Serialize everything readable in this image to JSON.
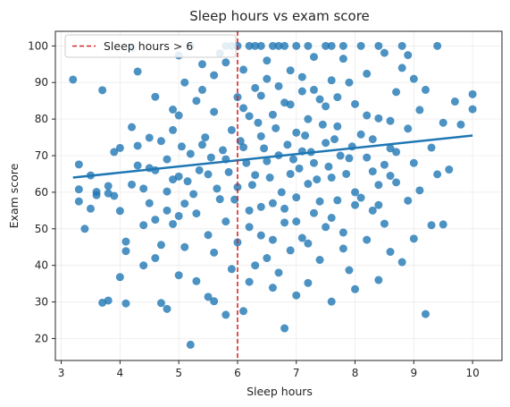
{
  "chart_data": {
    "type": "scatter",
    "title": "Sleep hours vs exam score",
    "xlabel": "Sleep hours",
    "ylabel": "Exam score",
    "xlim": [
      2.9,
      10.5
    ],
    "ylim": [
      14,
      104
    ],
    "xticks": [
      3,
      4,
      5,
      6,
      7,
      8,
      9,
      10
    ],
    "yticks": [
      20,
      30,
      40,
      50,
      60,
      70,
      80,
      90,
      100
    ],
    "grid": true,
    "legend": {
      "placement": "top-left",
      "entries": [
        "Sleep hours > 6"
      ]
    },
    "point_color": "#1f77b4",
    "trend_line": {
      "x": [
        3.2,
        10.0
      ],
      "y": [
        64.0,
        75.5
      ],
      "color": "#1f77b4"
    },
    "threshold_line": {
      "x": 6,
      "label": "Sleep hours > 6",
      "color": "#d62728",
      "style": "dashed"
    },
    "series": [
      {
        "values": [
          [
            3.2,
            90.8
          ],
          [
            3.3,
            67.6
          ],
          [
            3.3,
            60.8
          ],
          [
            3.3,
            57.5
          ],
          [
            3.4,
            50.0
          ],
          [
            3.5,
            64.6
          ],
          [
            3.6,
            60.1
          ],
          [
            3.6,
            59.2
          ],
          [
            3.7,
            87.9
          ],
          [
            3.7,
            29.8
          ],
          [
            3.8,
            30.4
          ],
          [
            3.8,
            61.7
          ],
          [
            3.8,
            59.7
          ],
          [
            3.9,
            59.0
          ],
          [
            4.0,
            72.1
          ],
          [
            4.0,
            54.9
          ],
          [
            4.0,
            36.8
          ],
          [
            4.1,
            46.5
          ],
          [
            4.1,
            43.9
          ],
          [
            4.1,
            29.6
          ],
          [
            4.2,
            77.8
          ],
          [
            4.2,
            62.1
          ],
          [
            4.3,
            67.3
          ],
          [
            4.3,
            72.7
          ],
          [
            4.4,
            51.0
          ],
          [
            4.4,
            40.0
          ],
          [
            4.5,
            74.9
          ],
          [
            4.5,
            66.6
          ],
          [
            4.6,
            86.1
          ],
          [
            4.6,
            42.0
          ],
          [
            4.7,
            29.7
          ],
          [
            4.7,
            45.6
          ],
          [
            4.8,
            28.1
          ],
          [
            4.8,
            60.2
          ],
          [
            4.9,
            82.6
          ],
          [
            4.9,
            51.3
          ],
          [
            5.0,
            97.4
          ],
          [
            5.0,
            64.3
          ],
          [
            5.0,
            53.5
          ],
          [
            5.0,
            37.3
          ],
          [
            5.1,
            90.0
          ],
          [
            5.1,
            45.0
          ],
          [
            5.1,
            56.9
          ],
          [
            5.2,
            100.0
          ],
          [
            5.2,
            18.3
          ],
          [
            5.2,
            70.5
          ],
          [
            5.3,
            85.0
          ],
          [
            5.3,
            35.7
          ],
          [
            5.3,
            54.2
          ],
          [
            5.4,
            95.0
          ],
          [
            5.4,
            73.0
          ],
          [
            5.5,
            31.4
          ],
          [
            5.5,
            48.3
          ],
          [
            5.5,
            64.9
          ],
          [
            5.6,
            82.0
          ],
          [
            5.6,
            30.2
          ],
          [
            5.6,
            43.5
          ],
          [
            5.7,
            58.1
          ],
          [
            5.7,
            98.0
          ],
          [
            5.8,
            26.5
          ],
          [
            5.8,
            52.0
          ],
          [
            5.8,
            69.0
          ],
          [
            5.9,
            100.0
          ],
          [
            5.9,
            77.0
          ],
          [
            5.9,
            39.0
          ],
          [
            6.0,
            61.4
          ],
          [
            6.0,
            86.0
          ],
          [
            6.0,
            46.3
          ],
          [
            6.1,
            27.5
          ],
          [
            6.1,
            93.5
          ],
          [
            6.1,
            72.3
          ],
          [
            6.2,
            35.5
          ],
          [
            6.2,
            55.0
          ],
          [
            6.2,
            80.8
          ],
          [
            6.3,
            100.0
          ],
          [
            6.3,
            64.7
          ],
          [
            6.3,
            40.0
          ],
          [
            6.4,
            86.4
          ],
          [
            6.4,
            48.2
          ],
          [
            6.4,
            75.3
          ],
          [
            6.5,
            42.0
          ],
          [
            6.5,
            68.5
          ],
          [
            6.5,
            96.0
          ],
          [
            6.6,
            57.0
          ],
          [
            6.6,
            33.9
          ],
          [
            6.6,
            81.2
          ],
          [
            6.7,
            100.0
          ],
          [
            6.7,
            70.1
          ],
          [
            6.7,
            38.0
          ],
          [
            6.8,
            84.5
          ],
          [
            6.8,
            51.7
          ],
          [
            6.8,
            22.8
          ],
          [
            6.9,
            65.0
          ],
          [
            6.9,
            93.3
          ],
          [
            6.9,
            44.1
          ],
          [
            7.0,
            76.3
          ],
          [
            7.0,
            100.0
          ],
          [
            7.0,
            31.8
          ],
          [
            7.0,
            58.6
          ],
          [
            7.1,
            71.2
          ],
          [
            7.1,
            87.6
          ],
          [
            7.1,
            47.5
          ],
          [
            7.2,
            35.2
          ],
          [
            7.2,
            62.3
          ],
          [
            7.2,
            80.0
          ],
          [
            7.3,
            97.0
          ],
          [
            7.3,
            54.3
          ],
          [
            7.3,
            68.0
          ],
          [
            7.4,
            41.5
          ],
          [
            7.4,
            85.4
          ],
          [
            7.5,
            100.0
          ],
          [
            7.5,
            73.5
          ],
          [
            7.5,
            50.5
          ],
          [
            7.6,
            30.1
          ],
          [
            7.6,
            64.0
          ],
          [
            7.6,
            90.6
          ],
          [
            7.7,
            57.8
          ],
          [
            7.7,
            78.0
          ],
          [
            7.8,
            44.6
          ],
          [
            7.8,
            96.5
          ],
          [
            7.9,
            69.3
          ],
          [
            7.9,
            38.7
          ],
          [
            8.0,
            84.1
          ],
          [
            8.0,
            33.5
          ],
          [
            8.0,
            60.0
          ],
          [
            8.1,
            100.0
          ],
          [
            8.1,
            75.8
          ],
          [
            8.2,
            47.0
          ],
          [
            8.2,
            92.4
          ],
          [
            8.3,
            55.0
          ],
          [
            8.3,
            65.7
          ],
          [
            8.4,
            36.0
          ],
          [
            8.4,
            80.2
          ],
          [
            8.5,
            98.1
          ],
          [
            8.5,
            51.4
          ],
          [
            8.6,
            72.0
          ],
          [
            8.6,
            43.7
          ],
          [
            8.7,
            87.4
          ],
          [
            8.7,
            62.7
          ],
          [
            8.8,
            40.9
          ],
          [
            8.8,
            100.0
          ],
          [
            8.9,
            57.7
          ],
          [
            8.9,
            77.4
          ],
          [
            9.0,
            47.3
          ],
          [
            9.0,
            68.0
          ],
          [
            9.1,
            82.5
          ],
          [
            9.1,
            60.5
          ],
          [
            9.2,
            26.7
          ],
          [
            9.2,
            88.0
          ],
          [
            9.3,
            51.0
          ],
          [
            9.3,
            72.2
          ],
          [
            9.4,
            100.0
          ],
          [
            9.4,
            64.9
          ],
          [
            9.5,
            79.0
          ],
          [
            9.5,
            51.2
          ],
          [
            9.6,
            66.2
          ],
          [
            9.7,
            84.8
          ],
          [
            9.8,
            78.5
          ],
          [
            10.0,
            86.8
          ],
          [
            10.0,
            82.7
          ],
          [
            5.05,
            72.5
          ],
          [
            5.15,
            63.0
          ],
          [
            5.25,
            59.5
          ],
          [
            5.35,
            66.0
          ],
          [
            5.45,
            75.0
          ],
          [
            5.55,
            69.5
          ],
          [
            5.65,
            61.0
          ],
          [
            5.75,
            71.5
          ],
          [
            5.85,
            65.5
          ],
          [
            5.95,
            58.0
          ],
          [
            6.05,
            74.0
          ],
          [
            6.15,
            68.0
          ],
          [
            6.25,
            62.0
          ],
          [
            6.35,
            79.0
          ],
          [
            6.45,
            72.0
          ],
          [
            6.55,
            64.0
          ],
          [
            6.65,
            77.5
          ],
          [
            6.75,
            60.0
          ],
          [
            6.85,
            73.0
          ],
          [
            6.95,
            69.0
          ],
          [
            7.05,
            66.5
          ],
          [
            7.15,
            75.5
          ],
          [
            7.25,
            71.0
          ],
          [
            7.35,
            63.5
          ],
          [
            7.45,
            78.5
          ],
          [
            7.55,
            67.0
          ],
          [
            7.65,
            74.5
          ],
          [
            7.75,
            70.0
          ],
          [
            7.85,
            65.0
          ],
          [
            7.95,
            72.5
          ],
          [
            6.1,
            83.0
          ],
          [
            6.3,
            88.5
          ],
          [
            6.5,
            91.0
          ],
          [
            6.7,
            89.0
          ],
          [
            6.9,
            84.0
          ],
          [
            7.1,
            91.5
          ],
          [
            7.3,
            88.0
          ],
          [
            7.5,
            83.5
          ],
          [
            7.7,
            86.0
          ],
          [
            7.9,
            90.0
          ],
          [
            6.2,
            50.5
          ],
          [
            6.4,
            56.0
          ],
          [
            6.6,
            47.0
          ],
          [
            6.8,
            55.5
          ],
          [
            7.0,
            52.0
          ],
          [
            7.2,
            46.0
          ],
          [
            7.4,
            57.5
          ],
          [
            7.6,
            53.0
          ],
          [
            7.8,
            49.0
          ],
          [
            8.0,
            56.5
          ],
          [
            4.6,
            66.0
          ],
          [
            4.7,
            74.0
          ],
          [
            4.8,
            69.0
          ],
          [
            4.9,
            77.0
          ],
          [
            5.0,
            81.0
          ],
          [
            4.5,
            57.0
          ],
          [
            4.6,
            52.5
          ],
          [
            4.8,
            55.0
          ],
          [
            4.9,
            63.5
          ],
          [
            4.4,
            61.0
          ],
          [
            8.2,
            69.5
          ],
          [
            8.3,
            74.5
          ],
          [
            8.4,
            62.0
          ],
          [
            8.5,
            67.5
          ],
          [
            8.6,
            79.5
          ],
          [
            8.7,
            71.0
          ],
          [
            8.1,
            58.5
          ],
          [
            8.2,
            81.0
          ],
          [
            8.4,
            56.5
          ],
          [
            8.6,
            64.5
          ],
          [
            5.8,
            100.0
          ],
          [
            6.0,
            100.0
          ],
          [
            6.2,
            100.0
          ],
          [
            6.4,
            100.0
          ],
          [
            6.6,
            100.0
          ],
          [
            6.8,
            100.0
          ],
          [
            7.2,
            100.0
          ],
          [
            7.6,
            100.0
          ],
          [
            7.8,
            100.0
          ],
          [
            8.4,
            100.0
          ],
          [
            5.4,
            88.0
          ],
          [
            5.6,
            92.0
          ],
          [
            5.8,
            95.5
          ],
          [
            8.8,
            94.0
          ],
          [
            9.0,
            91.0
          ],
          [
            8.9,
            97.5
          ],
          [
            4.3,
            93.0
          ],
          [
            4.2,
            99.5
          ],
          [
            3.9,
            71.0
          ],
          [
            3.5,
            55.5
          ]
        ]
      }
    ]
  }
}
